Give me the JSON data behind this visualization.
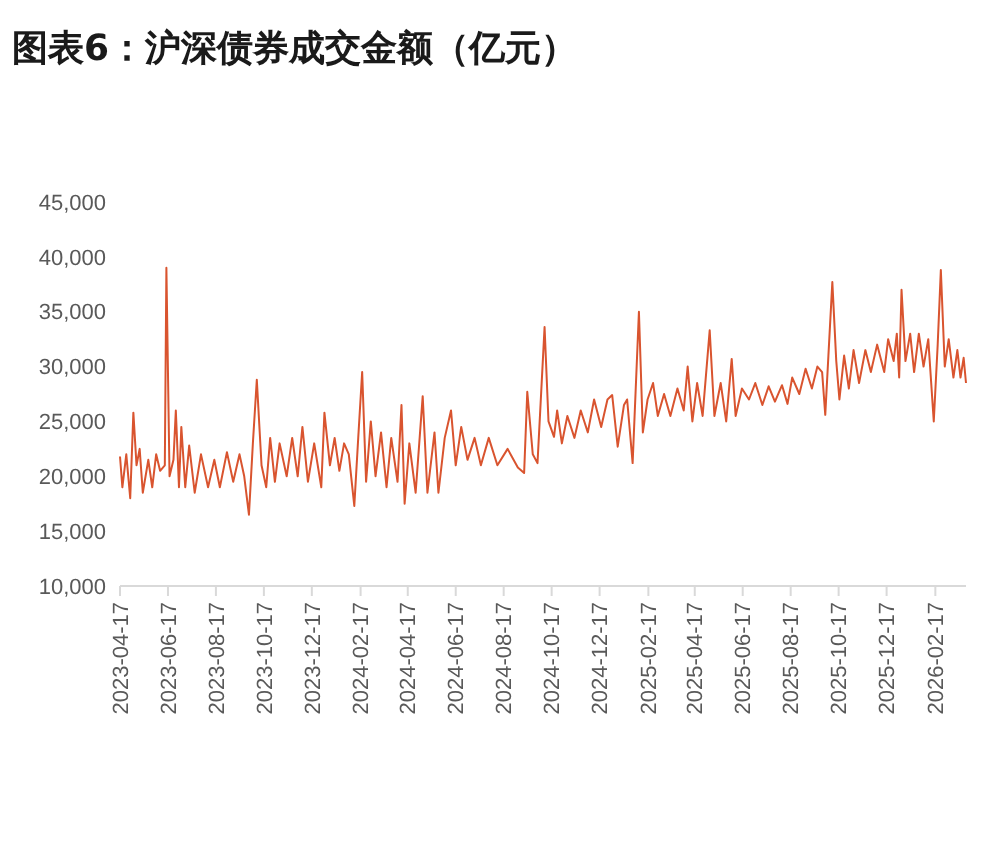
{
  "chart_data": {
    "type": "line",
    "title": "图表6：沪深债券成交金额（亿元）",
    "x": [
      "2023-04-17",
      "2023-04-20",
      "2023-04-25",
      "2023-04-30",
      "2023-05-04",
      "2023-05-08",
      "2023-05-12",
      "2023-05-16",
      "2023-05-23",
      "2023-05-28",
      "2023-06-02",
      "2023-06-07",
      "2023-06-13",
      "2023-06-15",
      "2023-06-19",
      "2023-06-24",
      "2023-06-27",
      "2023-07-01",
      "2023-07-04",
      "2023-07-09",
      "2023-07-14",
      "2023-07-21",
      "2023-07-29",
      "2023-08-07",
      "2023-08-15",
      "2023-08-22",
      "2023-08-31",
      "2023-09-08",
      "2023-09-16",
      "2023-09-22",
      "2023-09-28",
      "2023-10-03",
      "2023-10-08",
      "2023-10-14",
      "2023-10-20",
      "2023-10-25",
      "2023-10-31",
      "2023-11-06",
      "2023-11-15",
      "2023-11-22",
      "2023-11-29",
      "2023-12-05",
      "2023-12-12",
      "2023-12-20",
      "2023-12-29",
      "2024-01-02",
      "2024-01-09",
      "2024-01-15",
      "2024-01-21",
      "2024-01-27",
      "2024-02-02",
      "2024-02-09",
      "2024-02-14",
      "2024-02-19",
      "2024-02-24",
      "2024-03-01",
      "2024-03-07",
      "2024-03-14",
      "2024-03-21",
      "2024-03-27",
      "2024-04-04",
      "2024-04-09",
      "2024-04-13",
      "2024-04-19",
      "2024-04-27",
      "2024-05-06",
      "2024-05-12",
      "2024-05-21",
      "2024-05-26",
      "2024-06-03",
      "2024-06-11",
      "2024-06-17",
      "2024-06-24",
      "2024-07-02",
      "2024-07-11",
      "2024-07-19",
      "2024-07-29",
      "2024-08-09",
      "2024-08-22",
      "2024-09-04",
      "2024-09-12",
      "2024-09-16",
      "2024-09-23",
      "2024-09-29",
      "2024-10-08",
      "2024-10-13",
      "2024-10-20",
      "2024-10-24",
      "2024-10-30",
      "2024-11-06",
      "2024-11-15",
      "2024-11-23",
      "2024-12-02",
      "2024-12-10",
      "2024-12-19",
      "2024-12-27",
      "2025-01-02",
      "2025-01-09",
      "2025-01-17",
      "2025-01-21",
      "2025-01-28",
      "2025-02-05",
      "2025-02-10",
      "2025-02-16",
      "2025-02-23",
      "2025-03-01",
      "2025-03-09",
      "2025-03-17",
      "2025-03-26",
      "2025-04-03",
      "2025-04-08",
      "2025-04-14",
      "2025-04-20",
      "2025-04-27",
      "2025-05-06",
      "2025-05-12",
      "2025-05-20",
      "2025-05-27",
      "2025-06-03",
      "2025-06-08",
      "2025-06-16",
      "2025-06-25",
      "2025-07-03",
      "2025-07-12",
      "2025-07-20",
      "2025-07-28",
      "2025-08-06",
      "2025-08-13",
      "2025-08-19",
      "2025-08-28",
      "2025-09-05",
      "2025-09-13",
      "2025-09-20",
      "2025-09-26",
      "2025-09-30",
      "2025-10-04",
      "2025-10-09",
      "2025-10-14",
      "2025-10-18",
      "2025-10-24",
      "2025-10-30",
      "2025-11-05",
      "2025-11-12",
      "2025-11-20",
      "2025-11-27",
      "2025-12-05",
      "2025-12-14",
      "2025-12-19",
      "2025-12-26",
      "2025-12-30",
      "2026-01-02",
      "2026-01-05",
      "2026-01-10",
      "2026-01-16",
      "2026-01-21",
      "2026-01-27",
      "2026-02-02",
      "2026-02-08",
      "2026-02-15",
      "2026-02-20",
      "2026-02-24",
      "2026-03-01",
      "2026-03-06",
      "2026-03-12",
      "2026-03-17",
      "2026-03-21",
      "2026-03-25",
      "2026-03-28"
    ],
    "series": [
      {
        "color": "#d9542f",
        "values": [
          21800,
          19000,
          22000,
          18000,
          25800,
          21000,
          22500,
          18500,
          21500,
          19000,
          22000,
          20500,
          21000,
          39000,
          20000,
          21500,
          26000,
          19000,
          24500,
          19000,
          22800,
          18500,
          22000,
          19000,
          21500,
          19000,
          22200,
          19500,
          22000,
          20000,
          16500,
          23000,
          28800,
          21000,
          19000,
          23500,
          19500,
          23000,
          20000,
          23500,
          20000,
          24500,
          19500,
          23000,
          19000,
          25800,
          21000,
          23500,
          20500,
          23000,
          22000,
          17300,
          23500,
          29500,
          19500,
          25000,
          20000,
          24000,
          19000,
          23500,
          19500,
          26500,
          17500,
          23000,
          18500,
          27300,
          18500,
          24000,
          18500,
          23500,
          26000,
          21000,
          24500,
          21500,
          23500,
          21000,
          23500,
          21000,
          22500,
          20800,
          20300,
          27700,
          22000,
          21200,
          33600,
          25000,
          23600,
          26000,
          23000,
          25500,
          23500,
          26000,
          24000,
          27000,
          24500,
          27000,
          27400,
          22700,
          26500,
          27000,
          21200,
          35000,
          24000,
          27000,
          28500,
          25500,
          27500,
          25500,
          28000,
          26000,
          30000,
          25000,
          28500,
          25500,
          33300,
          25500,
          28500,
          25000,
          30700,
          25500,
          28000,
          27000,
          28500,
          26500,
          28200,
          26800,
          28300,
          26600,
          29000,
          27500,
          29800,
          28000,
          30000,
          29500,
          25600,
          31000,
          37700,
          30500,
          27000,
          31000,
          28000,
          31500,
          28500,
          31500,
          29500,
          32000,
          29500,
          32500,
          30500,
          33000,
          29000,
          37000,
          30500,
          33000,
          29500,
          33000,
          30000,
          32500,
          25000,
          32000,
          38800,
          30000,
          32500,
          29000,
          31500,
          29000,
          30800,
          28500
        ]
      }
    ],
    "xlim": [
      "2023-04-17",
      "2026-03-28"
    ],
    "xticks": [
      "2023-04-17",
      "2023-06-17",
      "2023-08-17",
      "2023-10-17",
      "2023-12-17",
      "2024-02-17",
      "2024-04-17",
      "2024-06-17",
      "2024-08-17",
      "2024-10-17",
      "2024-12-17",
      "2025-02-17",
      "2025-04-17",
      "2025-06-17",
      "2025-08-17",
      "2025-10-17",
      "2025-12-17",
      "2026-02-17"
    ],
    "ylim": [
      10000,
      45000
    ],
    "yticks": [
      {
        "value": 10000,
        "label": "10,000"
      },
      {
        "value": 15000,
        "label": "15,000"
      },
      {
        "value": 20000,
        "label": "20,000"
      },
      {
        "value": 25000,
        "label": "25,000"
      },
      {
        "value": 30000,
        "label": "30,000"
      },
      {
        "value": 35000,
        "label": "35,000"
      },
      {
        "value": 40000,
        "label": "40,000"
      },
      {
        "value": 45000,
        "label": "45,000"
      }
    ],
    "grid": false,
    "marker": "none",
    "line_style": "solid"
  }
}
